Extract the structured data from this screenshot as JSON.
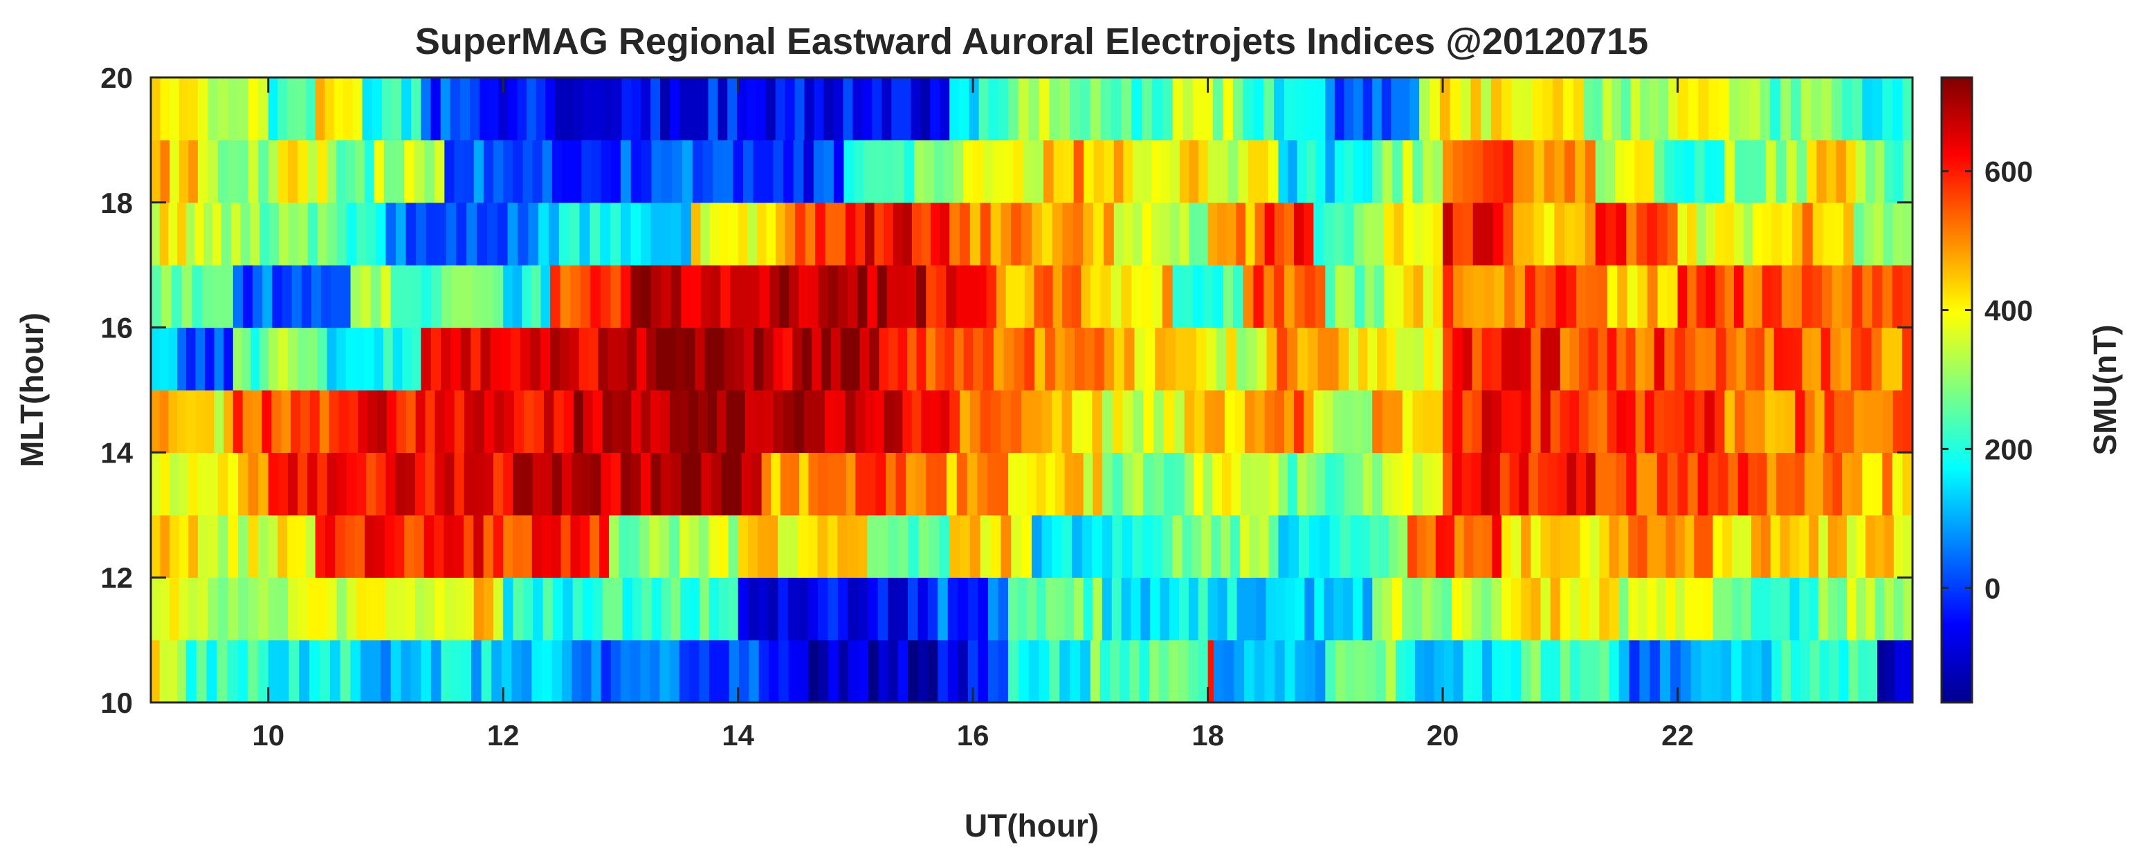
{
  "chart_data": {
    "type": "heatmap",
    "title": "SuperMAG Regional Eastward Auroral Electrojets Indices @20120715",
    "xlabel": "UT(hour)",
    "ylabel": "MLT(hour)",
    "colorbar_label": "SMU(nT)",
    "xlim": [
      9,
      24
    ],
    "ylim": [
      10,
      20
    ],
    "clim": [
      -165,
      735
    ],
    "x_ticks": [
      10,
      12,
      14,
      16,
      18,
      20,
      22
    ],
    "y_ticks": [
      10,
      12,
      14,
      16,
      18,
      20
    ],
    "colorbar_ticks": [
      0,
      200,
      400,
      600
    ],
    "colormap": "jet",
    "grid": false,
    "mlt_bins": [
      10,
      11,
      12,
      13,
      14,
      15,
      16,
      17,
      18,
      19
    ],
    "ut_step_hours": 0.0833,
    "rows": [
      {
        "mlt": 10,
        "segments": [
          [
            9.0,
            9.3,
            380
          ],
          [
            9.3,
            10.0,
            230
          ],
          [
            10.0,
            10.7,
            180
          ],
          [
            10.7,
            11.3,
            90
          ],
          [
            11.3,
            12.5,
            140
          ],
          [
            12.5,
            13.5,
            40
          ],
          [
            13.5,
            14.6,
            10
          ],
          [
            14.6,
            15.7,
            -120
          ],
          [
            15.7,
            16.3,
            -40
          ],
          [
            16.3,
            17.0,
            190
          ],
          [
            17.0,
            18.0,
            250
          ],
          [
            18.0,
            18.05,
            560
          ],
          [
            18.05,
            19.0,
            130
          ],
          [
            19.0,
            19.6,
            300
          ],
          [
            19.6,
            20.5,
            130
          ],
          [
            20.5,
            21.5,
            240
          ],
          [
            21.5,
            22.2,
            40
          ],
          [
            22.2,
            22.8,
            150
          ],
          [
            22.8,
            23.7,
            210
          ],
          [
            23.7,
            24.0,
            -110
          ]
        ]
      },
      {
        "mlt": 11,
        "segments": [
          [
            9.0,
            9.4,
            420
          ],
          [
            9.4,
            10.0,
            300
          ],
          [
            10.0,
            11.0,
            360
          ],
          [
            11.0,
            11.5,
            400
          ],
          [
            11.5,
            12.0,
            420
          ],
          [
            12.0,
            13.1,
            200
          ],
          [
            13.1,
            14.0,
            240
          ],
          [
            14.0,
            15.7,
            -60
          ],
          [
            15.7,
            16.3,
            20
          ],
          [
            16.3,
            17.1,
            260
          ],
          [
            17.1,
            18.0,
            170
          ],
          [
            18.0,
            19.4,
            140
          ],
          [
            19.4,
            20.5,
            330
          ],
          [
            20.5,
            21.5,
            420
          ],
          [
            21.5,
            22.3,
            330
          ],
          [
            22.3,
            23.2,
            220
          ],
          [
            23.2,
            24.0,
            310
          ]
        ]
      },
      {
        "mlt": 12,
        "segments": [
          [
            9.0,
            9.4,
            440
          ],
          [
            9.4,
            10.0,
            360
          ],
          [
            10.0,
            10.4,
            420
          ],
          [
            10.4,
            12.0,
            590
          ],
          [
            12.0,
            12.9,
            580
          ],
          [
            12.9,
            13.5,
            300
          ],
          [
            13.5,
            14.0,
            340
          ],
          [
            14.0,
            15.1,
            420
          ],
          [
            15.1,
            15.8,
            230
          ],
          [
            15.8,
            16.5,
            440
          ],
          [
            16.5,
            17.1,
            150
          ],
          [
            17.1,
            17.7,
            210
          ],
          [
            17.7,
            18.6,
            300
          ],
          [
            18.6,
            19.3,
            190
          ],
          [
            19.3,
            19.7,
            280
          ],
          [
            19.7,
            20.5,
            560
          ],
          [
            20.5,
            21.5,
            430
          ],
          [
            21.5,
            22.3,
            500
          ],
          [
            22.3,
            23.2,
            440
          ],
          [
            23.2,
            24.0,
            420
          ]
        ]
      },
      {
        "mlt": 13,
        "segments": [
          [
            9.0,
            9.4,
            400
          ],
          [
            9.4,
            10.0,
            430
          ],
          [
            10.0,
            11.0,
            600
          ],
          [
            11.0,
            12.0,
            640
          ],
          [
            12.0,
            13.0,
            660
          ],
          [
            13.0,
            14.2,
            700
          ],
          [
            14.2,
            15.0,
            470
          ],
          [
            15.0,
            15.6,
            540
          ],
          [
            15.6,
            16.3,
            480
          ],
          [
            16.3,
            17.1,
            410
          ],
          [
            17.1,
            17.8,
            290
          ],
          [
            17.8,
            18.6,
            360
          ],
          [
            18.6,
            19.4,
            270
          ],
          [
            19.4,
            20.0,
            350
          ],
          [
            20.0,
            21.3,
            600
          ],
          [
            21.3,
            22.0,
            560
          ],
          [
            22.0,
            22.6,
            600
          ],
          [
            22.6,
            23.4,
            520
          ],
          [
            23.4,
            24.0,
            460
          ]
        ]
      },
      {
        "mlt": 14,
        "segments": [
          [
            9.0,
            9.3,
            480
          ],
          [
            9.3,
            9.7,
            400
          ],
          [
            9.7,
            10.6,
            560
          ],
          [
            10.6,
            11.5,
            620
          ],
          [
            11.5,
            12.6,
            640
          ],
          [
            12.6,
            13.5,
            680
          ],
          [
            13.5,
            14.3,
            700
          ],
          [
            14.3,
            15.0,
            680
          ],
          [
            15.0,
            15.8,
            640
          ],
          [
            15.8,
            16.5,
            520
          ],
          [
            16.5,
            17.1,
            420
          ],
          [
            17.1,
            17.8,
            360
          ],
          [
            17.8,
            18.4,
            430
          ],
          [
            18.4,
            18.9,
            520
          ],
          [
            18.9,
            19.4,
            350
          ],
          [
            19.4,
            20.0,
            460
          ],
          [
            20.0,
            21.0,
            600
          ],
          [
            21.0,
            21.8,
            560
          ],
          [
            21.8,
            22.4,
            580
          ],
          [
            22.4,
            23.0,
            500
          ],
          [
            23.0,
            24.0,
            540
          ]
        ]
      },
      {
        "mlt": 15,
        "segments": [
          [
            9.0,
            9.3,
            100
          ],
          [
            9.3,
            9.7,
            30
          ],
          [
            9.7,
            10.0,
            260
          ],
          [
            10.0,
            10.5,
            310
          ],
          [
            10.5,
            11.3,
            180
          ],
          [
            11.3,
            12.4,
            640
          ],
          [
            12.4,
            13.3,
            660
          ],
          [
            13.3,
            14.3,
            700
          ],
          [
            14.3,
            15.2,
            680
          ],
          [
            15.2,
            16.0,
            560
          ],
          [
            16.0,
            16.7,
            520
          ],
          [
            16.7,
            17.2,
            480
          ],
          [
            17.2,
            17.9,
            420
          ],
          [
            17.9,
            18.5,
            370
          ],
          [
            18.5,
            19.2,
            520
          ],
          [
            19.2,
            20.0,
            400
          ],
          [
            20.0,
            21.0,
            600
          ],
          [
            21.0,
            21.8,
            540
          ],
          [
            21.8,
            22.5,
            580
          ],
          [
            22.5,
            23.3,
            540
          ],
          [
            23.3,
            24.0,
            520
          ]
        ]
      },
      {
        "mlt": 16,
        "segments": [
          [
            9.0,
            9.7,
            280
          ],
          [
            9.7,
            10.7,
            30
          ],
          [
            10.7,
            11.3,
            300
          ],
          [
            11.3,
            12.0,
            250
          ],
          [
            12.0,
            12.4,
            180
          ],
          [
            12.4,
            13.0,
            580
          ],
          [
            13.0,
            13.6,
            680
          ],
          [
            13.6,
            14.6,
            680
          ],
          [
            14.6,
            15.6,
            700
          ],
          [
            15.6,
            16.2,
            600
          ],
          [
            16.2,
            17.0,
            490
          ],
          [
            17.0,
            17.7,
            440
          ],
          [
            17.7,
            18.3,
            240
          ],
          [
            18.3,
            19.0,
            550
          ],
          [
            19.0,
            19.5,
            300
          ],
          [
            19.5,
            20.0,
            420
          ],
          [
            20.0,
            20.7,
            520
          ],
          [
            20.7,
            21.4,
            580
          ],
          [
            21.4,
            22.0,
            440
          ],
          [
            22.0,
            22.8,
            560
          ],
          [
            22.8,
            24.0,
            530
          ]
        ]
      },
      {
        "mlt": 17,
        "segments": [
          [
            9.0,
            9.3,
            400
          ],
          [
            9.3,
            9.6,
            350
          ],
          [
            9.6,
            10.5,
            290
          ],
          [
            10.5,
            11.0,
            220
          ],
          [
            11.0,
            11.6,
            40
          ],
          [
            11.6,
            12.3,
            60
          ],
          [
            12.3,
            13.0,
            150
          ],
          [
            13.0,
            13.6,
            110
          ],
          [
            13.6,
            14.4,
            400
          ],
          [
            14.4,
            15.0,
            560
          ],
          [
            15.0,
            15.8,
            620
          ],
          [
            15.8,
            16.5,
            520
          ],
          [
            16.5,
            17.2,
            470
          ],
          [
            17.2,
            18.0,
            330
          ],
          [
            18.0,
            18.4,
            470
          ],
          [
            18.4,
            18.9,
            580
          ],
          [
            18.9,
            19.5,
            260
          ],
          [
            19.5,
            20.0,
            390
          ],
          [
            20.0,
            20.6,
            600
          ],
          [
            20.6,
            21.3,
            430
          ],
          [
            21.3,
            22.0,
            560
          ],
          [
            22.0,
            22.8,
            380
          ],
          [
            22.8,
            23.5,
            480
          ],
          [
            23.5,
            24.0,
            300
          ]
        ]
      },
      {
        "mlt": 18,
        "segments": [
          [
            9.0,
            9.4,
            440
          ],
          [
            9.4,
            10.0,
            320
          ],
          [
            10.0,
            10.5,
            380
          ],
          [
            10.5,
            10.9,
            250
          ],
          [
            10.9,
            11.5,
            340
          ],
          [
            11.5,
            12.0,
            30
          ],
          [
            12.0,
            13.0,
            -10
          ],
          [
            13.0,
            13.7,
            30
          ],
          [
            13.7,
            14.9,
            -20
          ],
          [
            14.9,
            15.5,
            200
          ],
          [
            15.5,
            16.0,
            320
          ],
          [
            16.0,
            16.6,
            380
          ],
          [
            16.6,
            17.2,
            470
          ],
          [
            17.2,
            18.0,
            430
          ],
          [
            18.0,
            18.6,
            360
          ],
          [
            18.6,
            19.4,
            160
          ],
          [
            19.4,
            20.0,
            320
          ],
          [
            20.0,
            20.6,
            560
          ],
          [
            20.6,
            21.3,
            500
          ],
          [
            21.3,
            21.8,
            360
          ],
          [
            21.8,
            22.4,
            240
          ],
          [
            22.4,
            23.1,
            300
          ],
          [
            23.1,
            23.6,
            420
          ],
          [
            23.6,
            24.0,
            260
          ]
        ]
      },
      {
        "mlt": 19,
        "segments": [
          [
            9.0,
            9.4,
            420
          ],
          [
            9.4,
            10.0,
            340
          ],
          [
            10.0,
            10.4,
            240
          ],
          [
            10.4,
            10.8,
            400
          ],
          [
            10.8,
            11.3,
            200
          ],
          [
            11.3,
            11.8,
            10
          ],
          [
            11.8,
            12.6,
            -40
          ],
          [
            12.6,
            13.5,
            -60
          ],
          [
            13.5,
            14.4,
            -40
          ],
          [
            14.4,
            15.8,
            -50
          ],
          [
            15.8,
            16.3,
            170
          ],
          [
            16.3,
            17.0,
            310
          ],
          [
            17.0,
            17.7,
            250
          ],
          [
            17.7,
            18.3,
            320
          ],
          [
            18.3,
            19.0,
            200
          ],
          [
            19.0,
            19.8,
            30
          ],
          [
            19.8,
            20.5,
            390
          ],
          [
            20.5,
            21.2,
            420
          ],
          [
            21.2,
            22.0,
            300
          ],
          [
            22.0,
            22.7,
            360
          ],
          [
            22.7,
            23.4,
            260
          ],
          [
            23.4,
            24.0,
            200
          ]
        ]
      }
    ]
  }
}
